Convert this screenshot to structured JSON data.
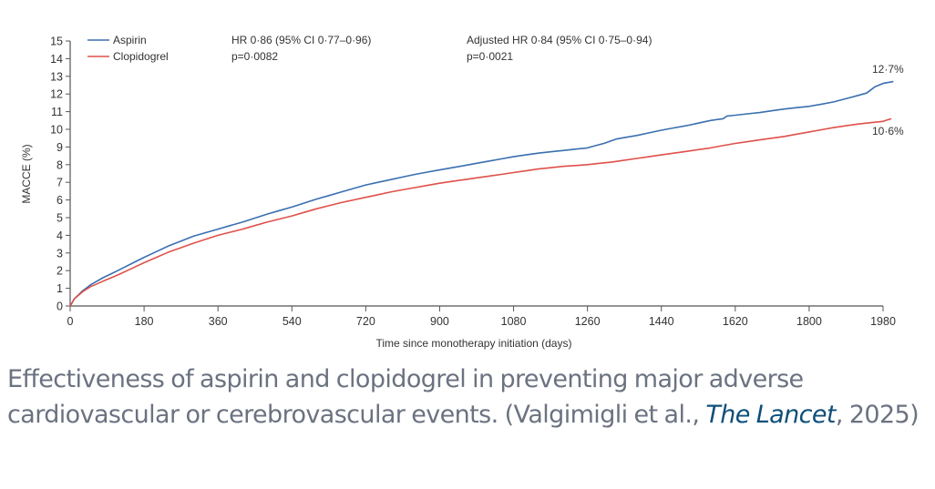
{
  "chart_data": {
    "type": "line",
    "title": "",
    "xlabel": "Time since monotherapy initiation (days)",
    "ylabel": "MACCE (%)",
    "xlim": [
      0,
      1980
    ],
    "ylim": [
      0,
      15
    ],
    "x_ticks": [
      0,
      180,
      360,
      540,
      720,
      900,
      1080,
      1260,
      1440,
      1620,
      1800,
      1980
    ],
    "y_ticks": [
      0,
      1,
      2,
      3,
      4,
      5,
      6,
      7,
      8,
      9,
      10,
      11,
      12,
      13,
      14,
      15
    ],
    "grid": false,
    "legend": {
      "position": "top-left",
      "entries": [
        "Aspirin",
        "Clopidogrel"
      ]
    },
    "annotations": {
      "hr": "HR 0·86 (95% CI 0·77–0·96)",
      "hr_p": "p=0·0082",
      "adj_hr": "Adjusted HR 0·84 (95% CI 0·75–0·94)",
      "adj_hr_p": "p=0·0021",
      "aspirin_end_label": "12·7%",
      "clopidogrel_end_label": "10·6%"
    },
    "series": [
      {
        "name": "Aspirin",
        "color": "#3a6fb0",
        "x": [
          0,
          10,
          30,
          50,
          80,
          120,
          180,
          240,
          300,
          360,
          420,
          480,
          540,
          600,
          660,
          720,
          780,
          840,
          900,
          960,
          1020,
          1080,
          1140,
          1200,
          1260,
          1300,
          1330,
          1380,
          1440,
          1500,
          1560,
          1590,
          1600,
          1620,
          1680,
          1740,
          1800,
          1860,
          1900,
          1940,
          1960,
          1980,
          2005
        ],
        "values": [
          0,
          0.4,
          0.85,
          1.2,
          1.6,
          2.05,
          2.75,
          3.4,
          3.95,
          4.35,
          4.75,
          5.2,
          5.6,
          6.05,
          6.45,
          6.85,
          7.15,
          7.45,
          7.7,
          7.95,
          8.2,
          8.45,
          8.65,
          8.8,
          8.95,
          9.2,
          9.45,
          9.65,
          9.95,
          10.2,
          10.5,
          10.6,
          10.75,
          10.8,
          10.95,
          11.15,
          11.3,
          11.55,
          11.8,
          12.05,
          12.4,
          12.6,
          12.7
        ]
      },
      {
        "name": "Clopidogrel",
        "color": "#e0504a",
        "x": [
          0,
          10,
          30,
          50,
          80,
          120,
          180,
          240,
          300,
          360,
          420,
          480,
          540,
          600,
          660,
          720,
          780,
          840,
          900,
          960,
          1020,
          1080,
          1140,
          1200,
          1260,
          1320,
          1380,
          1440,
          1500,
          1560,
          1620,
          1680,
          1740,
          1800,
          1860,
          1920,
          1980,
          2000
        ],
        "values": [
          0,
          0.4,
          0.8,
          1.1,
          1.4,
          1.8,
          2.45,
          3.05,
          3.55,
          4.0,
          4.35,
          4.75,
          5.1,
          5.5,
          5.85,
          6.15,
          6.45,
          6.7,
          6.95,
          7.15,
          7.35,
          7.55,
          7.75,
          7.9,
          8.0,
          8.15,
          8.35,
          8.55,
          8.75,
          8.95,
          9.2,
          9.4,
          9.6,
          9.85,
          10.1,
          10.3,
          10.45,
          10.6
        ]
      }
    ]
  },
  "caption": {
    "text": "Effectiveness of aspirin and clopidogrel in preventing major adverse cardiovascular or cerebrovascular events. (Valgimigli et al., ",
    "journal": "The Lancet",
    "suffix": ", 2025)"
  }
}
